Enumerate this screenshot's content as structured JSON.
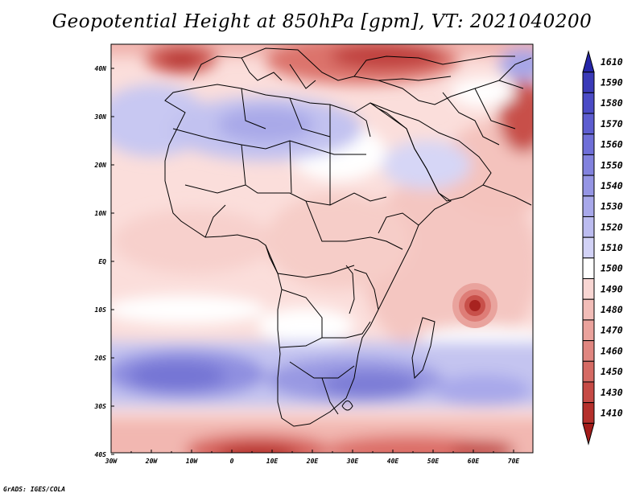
{
  "title": "Geopotential Height at 850hPa [gpm], VT: 2021040200",
  "footer": "GrADS: IGES/COLA",
  "chart_data": {
    "type": "heatmap",
    "variable": "Geopotential Height",
    "level": "850hPa",
    "units": "gpm",
    "valid_time": "2021040200",
    "x_axis": {
      "ticks": [
        "30W",
        "20W",
        "10W",
        "0",
        "10E",
        "20E",
        "30E",
        "40E",
        "50E",
        "60E",
        "70E"
      ],
      "range": [
        -30,
        75
      ]
    },
    "y_axis": {
      "ticks": [
        "40N",
        "30N",
        "20N",
        "10N",
        "EQ",
        "10S",
        "20S",
        "30S",
        "40S"
      ],
      "range": [
        -40,
        45
      ]
    },
    "colorbar": {
      "labels": [
        1610,
        1590,
        1580,
        1570,
        1560,
        1550,
        1540,
        1530,
        1520,
        1510,
        1500,
        1490,
        1480,
        1470,
        1460,
        1450,
        1430,
        1410
      ],
      "colors": [
        "#2525a8",
        "#3a3ab8",
        "#4b4bc6",
        "#5d5dd0",
        "#6f6fd8",
        "#8282de",
        "#9595e4",
        "#a8a8ea",
        "#bcbcf0",
        "#d2d2f6",
        "#ffffff",
        "#f8d6d3",
        "#f2bdb8",
        "#eaa29c",
        "#e08680",
        "#d56a64",
        "#c64a45",
        "#b5302c",
        "#a31c1a"
      ]
    },
    "features": [
      {
        "type": "low",
        "location": "Indian Ocean near 62E 11S"
      },
      {
        "type": "high",
        "location": "South Atlantic near 20W 24S"
      },
      {
        "type": "high",
        "location": "Southern Africa / Indian Ocean near 30E-45E 30S"
      },
      {
        "type": "high",
        "location": "North Africa near 10E 25N"
      }
    ]
  }
}
